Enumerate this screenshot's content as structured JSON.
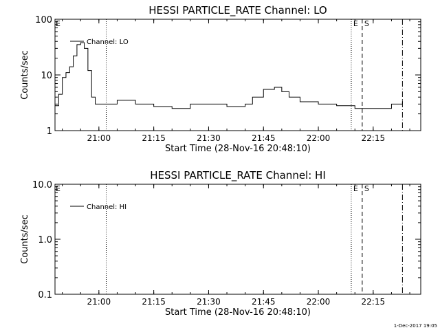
{
  "footer": "1-Dec-2017 19:05",
  "chart_data": [
    {
      "type": "line",
      "title": "HESSI PARTICLE_RATE Channel: LO",
      "xlabel": "Start Time (28-Nov-16 20:48:10)",
      "ylabel": "Counts/sec",
      "y_scale": "log",
      "xlim": [
        "20:48",
        "22:28"
      ],
      "ylim": [
        1,
        100
      ],
      "x_ticks": [
        "21:00",
        "21:15",
        "21:30",
        "21:45",
        "22:00",
        "22:15"
      ],
      "y_ticks": [
        "1",
        "10",
        "100"
      ],
      "legend": "Channel: LO",
      "legend_position": "top-left",
      "markers": [
        {
          "time": "21:02",
          "style": "dotted",
          "label": ""
        },
        {
          "time": "22:09",
          "style": "dotted",
          "label": "E"
        },
        {
          "time": "22:12",
          "style": "dashed",
          "label": "S"
        },
        {
          "time": "22:23",
          "style": "dashdot",
          "label": ""
        }
      ],
      "corner_label": "E",
      "series": [
        {
          "x": [
            "20:48",
            "20:49",
            "20:50",
            "20:51",
            "20:52",
            "20:53",
            "20:54",
            "20:55",
            "20:56",
            "20:57",
            "20:58",
            "20:59",
            "21:00",
            "21:01",
            "21:05",
            "21:10",
            "21:15",
            "21:20",
            "21:25",
            "21:30",
            "21:35",
            "21:40",
            "21:42",
            "21:45",
            "21:48",
            "21:50",
            "21:52",
            "21:55",
            "22:00",
            "22:05",
            "22:10",
            "22:15",
            "22:20",
            "22:23"
          ],
          "values": [
            2.8,
            4.5,
            9,
            11,
            14,
            22,
            35,
            38,
            30,
            12,
            4,
            3,
            3,
            3,
            3.5,
            3,
            2.7,
            2.5,
            3,
            3,
            2.7,
            3,
            4,
            5.5,
            6,
            5,
            4,
            3.3,
            3,
            2.8,
            2.5,
            2.5,
            3,
            3.5
          ]
        }
      ]
    },
    {
      "type": "line",
      "title": "HESSI PARTICLE_RATE Channel: HI",
      "xlabel": "Start Time (28-Nov-16 20:48:10)",
      "ylabel": "Counts/sec",
      "y_scale": "log",
      "xlim": [
        "20:48",
        "22:28"
      ],
      "ylim": [
        0.1,
        10.0
      ],
      "x_ticks": [
        "21:00",
        "21:15",
        "21:30",
        "21:45",
        "22:00",
        "22:15"
      ],
      "y_ticks": [
        "0.1",
        "1.0",
        "10.0"
      ],
      "legend": "Channel: HI",
      "legend_position": "top-left",
      "markers": [
        {
          "time": "21:02",
          "style": "dotted",
          "label": ""
        },
        {
          "time": "22:09",
          "style": "dotted",
          "label": "E"
        },
        {
          "time": "22:12",
          "style": "dashed",
          "label": "S"
        },
        {
          "time": "22:23",
          "style": "dashdot",
          "label": ""
        }
      ],
      "corner_label": "E",
      "series": []
    }
  ]
}
